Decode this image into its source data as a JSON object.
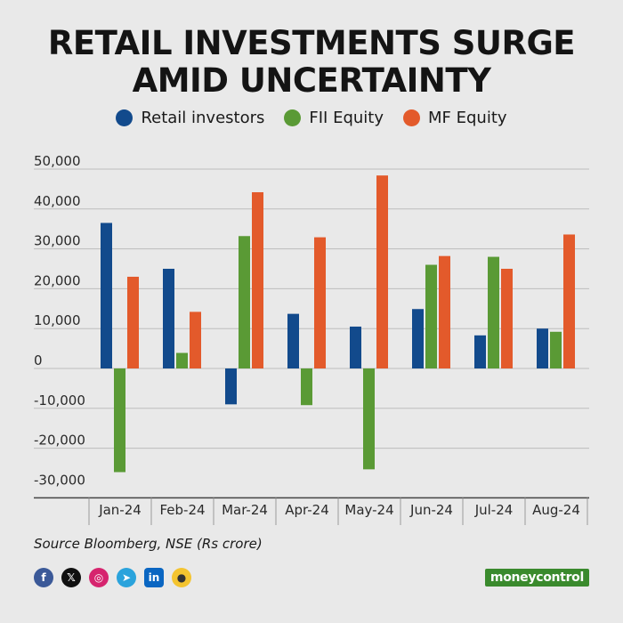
{
  "title_line1": "RETAIL INVESTMENTS SURGE",
  "title_line2": "AMID UNCERTAINTY",
  "source": "Source Bloomberg, NSE (Rs crore)",
  "logo": "moneycontrol",
  "social_icons": [
    "facebook-icon",
    "x-icon",
    "instagram-icon",
    "telegram-icon",
    "linkedin-icon",
    "koo-icon"
  ],
  "colors": {
    "retail": "#124a8c",
    "fii": "#5a9a35",
    "mf": "#e35a2b",
    "grid": "#bdbdbd",
    "axis": "#444444"
  },
  "chart_data": {
    "type": "bar",
    "title": "RETAIL INVESTMENTS SURGE AMID UNCERTAINTY",
    "categories": [
      "Jan-24",
      "Feb-24",
      "Mar-24",
      "Apr-24",
      "May-24",
      "Jun-24",
      "Jul-24",
      "Aug-24"
    ],
    "series": [
      {
        "name": "Retail investors",
        "values": [
          36500,
          25000,
          -9000,
          13700,
          10500,
          14900,
          8300,
          10000
        ]
      },
      {
        "name": "FII Equity",
        "values": [
          -26000,
          3900,
          33200,
          -9200,
          -25300,
          26000,
          28000,
          9200
        ]
      },
      {
        "name": "MF Equity",
        "values": [
          23000,
          14200,
          44200,
          32900,
          48400,
          28200,
          25000,
          33600
        ]
      }
    ],
    "yticks": [
      50000,
      40000,
      30000,
      20000,
      10000,
      0,
      -10000,
      -20000,
      -30000
    ],
    "ytick_labels": [
      "50,000",
      "40,000",
      "30,000",
      "20,000",
      "10,000",
      "0",
      "-10,000",
      "-20,000",
      "-30,000"
    ],
    "ylim": [
      -30000,
      50000
    ],
    "grid": true,
    "legend_position": "top-center"
  }
}
